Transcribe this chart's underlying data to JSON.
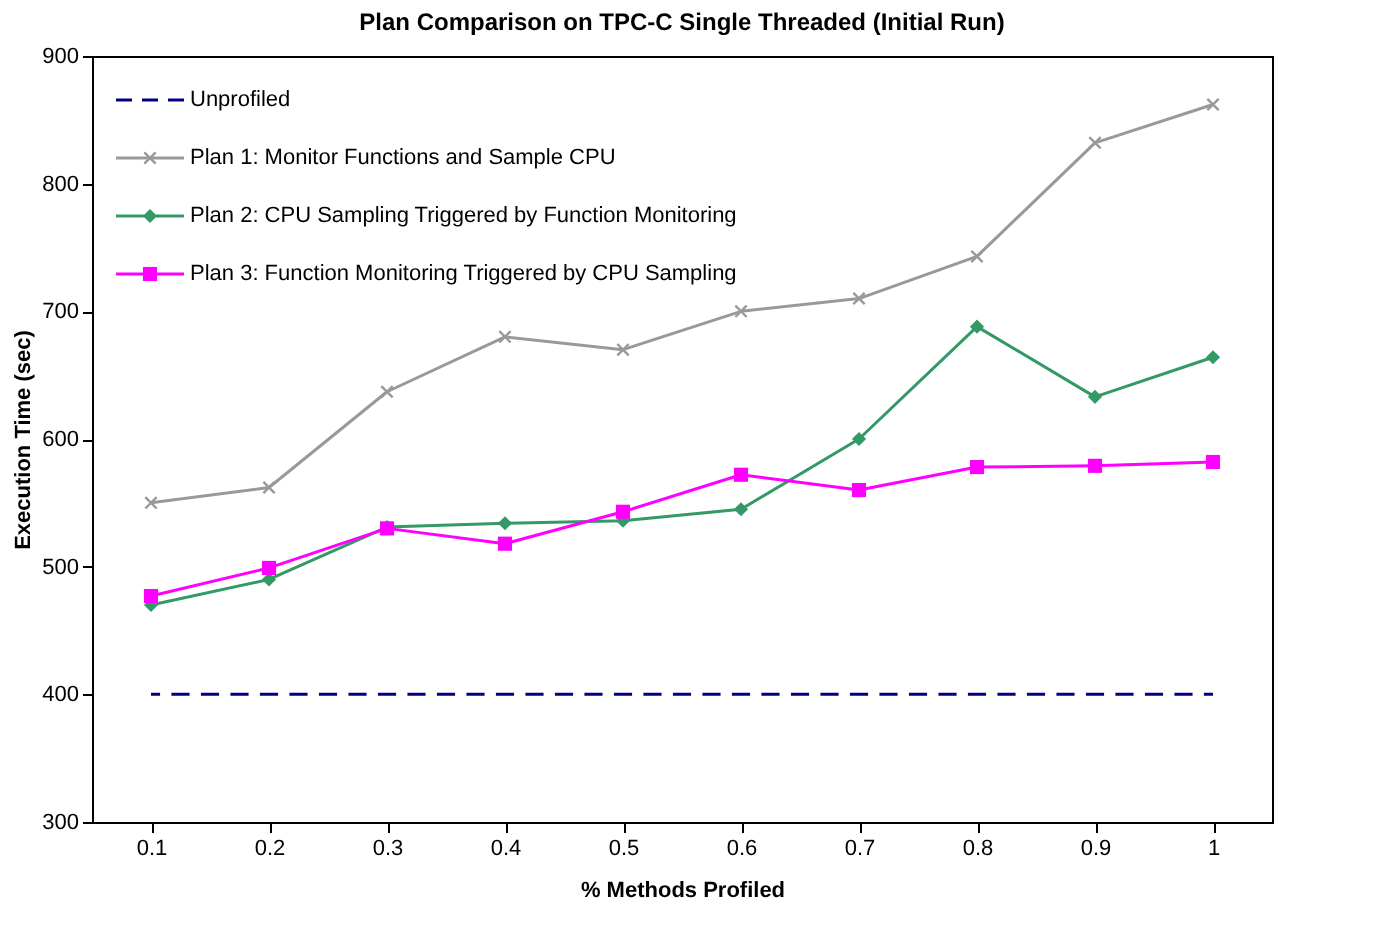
{
  "chart_data": {
    "type": "line",
    "title": "Plan Comparison on TPC-C Single Threaded (Initial Run)",
    "xlabel": "% Methods Profiled",
    "ylabel": "Execution Time (sec)",
    "categories": [
      "0.1",
      "0.2",
      "0.3",
      "0.4",
      "0.5",
      "0.6",
      "0.7",
      "0.8",
      "0.9",
      "1"
    ],
    "series": [
      {
        "name": "Unprofiled",
        "color": "#000080",
        "marker": "none",
        "line_style": "dashed",
        "values": [
          400,
          400,
          400,
          400,
          400,
          400,
          400,
          400,
          400,
          400
        ]
      },
      {
        "name": "Plan 1: Monitor Functions and Sample CPU",
        "color": "#999999",
        "marker": "cross",
        "line_style": "solid",
        "values": [
          550,
          562,
          637,
          680,
          670,
          700,
          710,
          743,
          832,
          862
        ]
      },
      {
        "name": "Plan 2: CPU Sampling Triggered by Function Monitoring",
        "color": "#339966",
        "marker": "diamond",
        "line_style": "solid",
        "values": [
          470,
          490,
          531,
          534,
          536,
          545,
          600,
          688,
          633,
          664
        ]
      },
      {
        "name": "Plan 3: Function Monitoring Triggered by CPU Sampling",
        "color": "#ff00ff",
        "marker": "square",
        "line_style": "solid",
        "values": [
          477,
          499,
          530,
          518,
          543,
          572,
          560,
          578,
          579,
          582
        ]
      }
    ],
    "ylim": [
      300,
      900
    ],
    "yticks": [
      300,
      400,
      500,
      600,
      700,
      800,
      900
    ],
    "grid": false,
    "legend": "top left"
  }
}
